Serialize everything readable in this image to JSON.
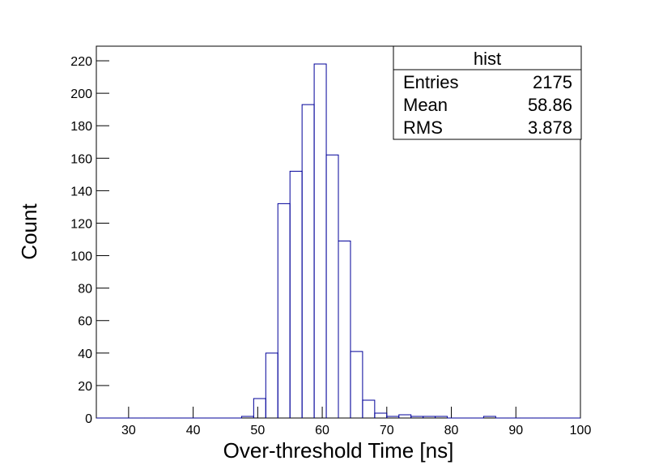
{
  "chart_data": {
    "type": "histogram",
    "xlabel": "Over-threshold Time [ns]",
    "ylabel": "Count",
    "color": "#000099",
    "bins": [
      25,
      26.875,
      28.75,
      30.625,
      32.5,
      34.375,
      36.25,
      38.125,
      40,
      41.875,
      43.75,
      45.625,
      47.5,
      49.375,
      51.25,
      53.125,
      55,
      56.875,
      58.75,
      60.625,
      62.5,
      64.375,
      66.25,
      68.125,
      70,
      71.875,
      73.75,
      75.625,
      77.5,
      79.375,
      81.25,
      83.125,
      85,
      86.875,
      88.75,
      90.625,
      92.5,
      94.375,
      96.25,
      98.125,
      100
    ],
    "values": [
      0,
      0,
      0,
      0,
      0,
      0,
      0,
      0,
      0,
      0,
      0,
      0,
      1,
      12,
      40,
      132,
      152,
      193,
      218,
      162,
      109,
      41,
      11,
      3,
      1,
      2,
      1,
      1,
      1,
      0,
      0,
      0,
      1,
      0,
      0,
      0,
      0,
      0,
      0,
      0
    ],
    "xlim": [
      25,
      100
    ],
    "xticks": [
      30,
      40,
      50,
      60,
      70,
      80,
      90,
      100
    ],
    "ylim": [
      0,
      229
    ],
    "yticks": [
      0,
      20,
      40,
      60,
      80,
      100,
      120,
      140,
      160,
      180,
      200,
      220
    ],
    "stats_box": {
      "title": "hist",
      "rows": [
        {
          "label": "Entries",
          "value": 2175
        },
        {
          "label": "Mean",
          "value": 58.86
        },
        {
          "label": "RMS",
          "value": 3.878
        }
      ]
    }
  }
}
